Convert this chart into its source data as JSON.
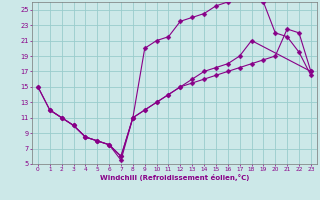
{
  "xlabel": "Windchill (Refroidissement éolien,°C)",
  "bg_color": "#cce8e8",
  "line_color": "#880088",
  "grid_color": "#99cccc",
  "line1_x": [
    0,
    1,
    2,
    3,
    4,
    5,
    6,
    7,
    8,
    9,
    10,
    11,
    12,
    13,
    14,
    15,
    16,
    17,
    18,
    23
  ],
  "line1_y": [
    15,
    12,
    11,
    10,
    8.5,
    8,
    7.5,
    6,
    11,
    12,
    13,
    14,
    15,
    16,
    17,
    17.5,
    18,
    19,
    21,
    17
  ],
  "line2_x": [
    1,
    2,
    3,
    4,
    5,
    6,
    7,
    8,
    9,
    10,
    11,
    12,
    13,
    14,
    15,
    16,
    17,
    18,
    19,
    20,
    21,
    22,
    23
  ],
  "line2_y": [
    12,
    11,
    10,
    8.5,
    8,
    7.5,
    5.5,
    11,
    20,
    21,
    21.5,
    23.5,
    24,
    24.5,
    25.5,
    26,
    26.5,
    26.5,
    26,
    22,
    21.5,
    19.5,
    16.5
  ],
  "line3_x": [
    0,
    1,
    2,
    3,
    4,
    5,
    6,
    7,
    8,
    9,
    10,
    11,
    12,
    13,
    14,
    15,
    16,
    17,
    18,
    19,
    20,
    21,
    22,
    23
  ],
  "line3_y": [
    15,
    12,
    11,
    10,
    8.5,
    8,
    7.5,
    6,
    11,
    12,
    13,
    14,
    15,
    15.5,
    16,
    16.5,
    17,
    17.5,
    18,
    18.5,
    19,
    22.5,
    22,
    17
  ],
  "xlim": [
    -0.5,
    23.5
  ],
  "ylim": [
    5,
    26
  ],
  "yticks": [
    5,
    7,
    9,
    11,
    13,
    15,
    17,
    19,
    21,
    23,
    25
  ],
  "xticks": [
    0,
    1,
    2,
    3,
    4,
    5,
    6,
    7,
    8,
    9,
    10,
    11,
    12,
    13,
    14,
    15,
    16,
    17,
    18,
    19,
    20,
    21,
    22,
    23
  ]
}
